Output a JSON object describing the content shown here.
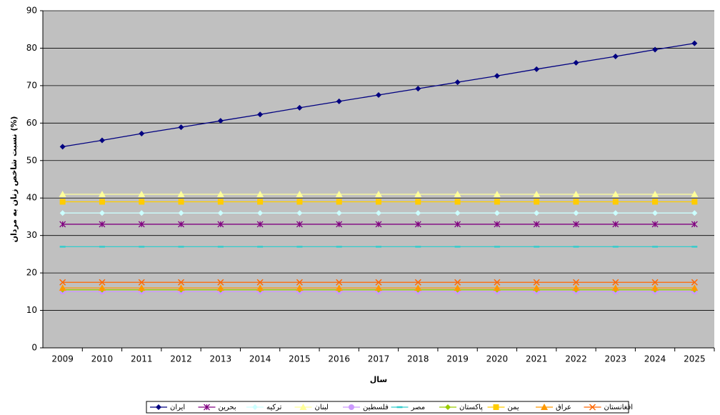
{
  "chart_data": {
    "type": "line",
    "y_label": "نسبت شاخص زنان به مردان (%)",
    "x_label": "سال",
    "categories": [
      "2009",
      "2010",
      "2011",
      "2012",
      "2013",
      "2014",
      "2015",
      "2016",
      "2017",
      "2018",
      "2019",
      "2020",
      "2021",
      "2022",
      "2023",
      "2024",
      "2025"
    ],
    "ylim": [
      0,
      90
    ],
    "yticks": [
      0,
      10,
      20,
      30,
      40,
      50,
      60,
      70,
      80,
      90
    ],
    "grid": true,
    "series": [
      {
        "name": "ایران",
        "color": "#000080",
        "marker": "diamond",
        "values": [
          53.7,
          55.4,
          57.2,
          58.9,
          60.6,
          62.3,
          64.1,
          65.8,
          67.5,
          69.2,
          70.9,
          72.6,
          74.4,
          76.1,
          77.8,
          79.6,
          81.3
        ]
      },
      {
        "name": "بحرین",
        "color": "#800080",
        "marker": "star",
        "values": [
          33,
          33,
          33,
          33,
          33,
          33,
          33,
          33,
          33,
          33,
          33,
          33,
          33,
          33,
          33,
          33,
          33
        ]
      },
      {
        "name": "ترکیه",
        "color": "#ccffff",
        "marker": "diamond",
        "values": [
          36,
          36,
          36,
          36,
          36,
          36,
          36,
          36,
          36,
          36,
          36,
          36,
          36,
          36,
          36,
          36,
          36
        ]
      },
      {
        "name": "لبنان",
        "color": "#ffff99",
        "marker": "triangle",
        "values": [
          41,
          41,
          41,
          41,
          41,
          41,
          41,
          41,
          41,
          41,
          41,
          41,
          41,
          41,
          41,
          41,
          41
        ]
      },
      {
        "name": "فلسطین",
        "color": "#cc99ff",
        "marker": "circle",
        "values": [
          15,
          15,
          15,
          15,
          15,
          15,
          15,
          15,
          15,
          15,
          15,
          15,
          15,
          15,
          15,
          15,
          15
        ]
      },
      {
        "name": "مصر",
        "color": "#33cccc",
        "marker": "dash",
        "values": [
          27,
          27,
          27,
          27,
          27,
          27,
          27,
          27,
          27,
          27,
          27,
          27,
          27,
          27,
          27,
          27,
          27
        ]
      },
      {
        "name": "پاکستان",
        "color": "#99cc00",
        "marker": "diamond",
        "values": [
          15.5,
          15.5,
          15.5,
          15.5,
          15.5,
          15.5,
          15.5,
          15.5,
          15.5,
          15.5,
          15.5,
          15.5,
          15.5,
          15.5,
          15.5,
          15.5,
          15.5
        ]
      },
      {
        "name": "یمن",
        "color": "#ffcc00",
        "marker": "square",
        "values": [
          39,
          39,
          39,
          39,
          39,
          39,
          39,
          39,
          39,
          39,
          39,
          39,
          39,
          39,
          39,
          39,
          39
        ]
      },
      {
        "name": "عراق",
        "color": "#ff9900",
        "marker": "triangle",
        "values": [
          16,
          16,
          16,
          16,
          16,
          16,
          16,
          16,
          16,
          16,
          16,
          16,
          16,
          16,
          16,
          16,
          16
        ]
      },
      {
        "name": "افغانستان",
        "color": "#ff6600",
        "marker": "x",
        "values": [
          17.5,
          17.5,
          17.5,
          17.5,
          17.5,
          17.5,
          17.5,
          17.5,
          17.5,
          17.5,
          17.5,
          17.5,
          17.5,
          17.5,
          17.5,
          17.5,
          17.5
        ]
      }
    ]
  }
}
